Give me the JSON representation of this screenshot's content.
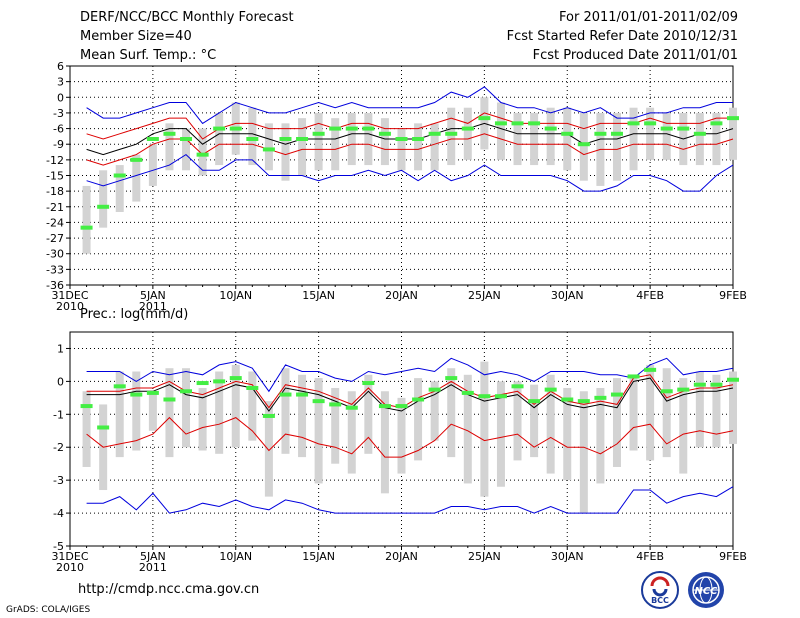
{
  "header": {
    "title": "DERF/NCC/BCC Monthly Forecast",
    "member_size": "Member Size=40",
    "variable1": "Mean Surf. Temp.: °C",
    "period": "For 2011/01/01-2011/02/09",
    "fcst_started": "Fcst Started Refer Date 2010/12/31",
    "fcst_produced": "Fcst Produced Date 2011/01/01"
  },
  "footer": {
    "url": "http://cmdp.ncc.cma.gov.cn",
    "grads": "GrADS: COLA/IGES",
    "logo_left_text": "BCC",
    "logo_right_text": "NCC"
  },
  "colors": {
    "box": "#d3d3d3",
    "obs": "#44ee44",
    "max_min": "#0000dd",
    "spread": "#dd0000",
    "mean": "#000000",
    "grid": "#000000"
  },
  "chart_data": [
    {
      "type": "line",
      "title": "Mean Surf. Temp.: °C",
      "xlabel": "",
      "ylabel": "",
      "ylim": [
        -36,
        6
      ],
      "yticks": [
        6,
        3,
        0,
        -3,
        -6,
        -9,
        -12,
        -15,
        -18,
        -21,
        -24,
        -27,
        -30,
        -33,
        -36
      ],
      "xticks": [
        {
          "day": 0,
          "label": "31DEC",
          "sub": "2010"
        },
        {
          "day": 5,
          "label": "5JAN",
          "sub": "2011"
        },
        {
          "day": 10,
          "label": "10JAN",
          "sub": ""
        },
        {
          "day": 15,
          "label": "15JAN",
          "sub": ""
        },
        {
          "day": 20,
          "label": "20JAN",
          "sub": ""
        },
        {
          "day": 25,
          "label": "25JAN",
          "sub": ""
        },
        {
          "day": 30,
          "label": "30JAN",
          "sub": ""
        },
        {
          "day": 35,
          "label": "4FEB",
          "sub": ""
        },
        {
          "day": 40,
          "label": "9FEB",
          "sub": ""
        }
      ],
      "days": [
        1,
        2,
        3,
        4,
        5,
        6,
        7,
        8,
        9,
        10,
        11,
        12,
        13,
        14,
        15,
        16,
        17,
        18,
        19,
        20,
        21,
        22,
        23,
        24,
        25,
        26,
        27,
        28,
        29,
        30,
        31,
        32,
        33,
        34,
        35,
        36,
        37,
        38,
        39,
        40
      ],
      "box_high": [
        -17,
        -14,
        -13,
        -11,
        -9,
        -5,
        -6,
        -6,
        -3,
        -1,
        -2,
        -5,
        -5,
        -4,
        -3,
        -4,
        -3,
        -3,
        -4,
        -6,
        -5,
        -5,
        -2,
        -2,
        0,
        -1,
        -3,
        -3,
        -2,
        -2,
        -3,
        -3,
        -3,
        -2,
        -2,
        -3,
        -3,
        -3,
        -3,
        -2
      ],
      "box_low": [
        -30,
        -25,
        -22,
        -20,
        -17,
        -14,
        -14,
        -15,
        -13,
        -11,
        -13,
        -14,
        -16,
        -15,
        -14,
        -14,
        -13,
        -13,
        -13,
        -14,
        -14,
        -14,
        -13,
        -12,
        -10,
        -12,
        -13,
        -13,
        -13,
        -14,
        -16,
        -17,
        -16,
        -14,
        -12,
        -12,
        -13,
        -13,
        -13,
        -12
      ],
      "obs": [
        -25,
        -21,
        -15,
        -12,
        -8,
        -7,
        -8,
        -11,
        -6,
        -6,
        -8,
        -10,
        -8,
        -8,
        -7,
        -6,
        -6,
        -6,
        -7,
        -8,
        -8,
        -7,
        -7,
        -6,
        -4,
        -5,
        -5,
        -5,
        -6,
        -7,
        -9,
        -7,
        -7,
        -5,
        -5,
        -6,
        -6,
        -7,
        -5,
        -4
      ],
      "series": [
        {
          "name": "max",
          "values": [
            -2,
            -4,
            -4,
            -3,
            -2,
            -1,
            -1,
            -5,
            -3,
            -1,
            -2,
            -3,
            -3,
            -2,
            -1,
            -2,
            -1,
            -2,
            -2,
            -2,
            -2,
            -1,
            1,
            0,
            2,
            -1,
            -2,
            -2,
            -3,
            -2,
            -3,
            -2,
            -4,
            -4,
            -3,
            -3,
            -2,
            -2,
            -1,
            -1
          ]
        },
        {
          "name": "upper",
          "values": [
            -7,
            -8,
            -7,
            -6,
            -5,
            -4,
            -4,
            -8,
            -6,
            -5,
            -5,
            -6,
            -6,
            -6,
            -5,
            -6,
            -5,
            -5,
            -6,
            -6,
            -6,
            -5,
            -4,
            -5,
            -3,
            -4,
            -5,
            -5,
            -5,
            -5,
            -6,
            -5,
            -5,
            -5,
            -4,
            -5,
            -5,
            -5,
            -4,
            -4
          ]
        },
        {
          "name": "mean",
          "values": [
            -10,
            -11,
            -10,
            -9,
            -7,
            -6,
            -6,
            -9,
            -7,
            -7,
            -7,
            -8,
            -9,
            -8,
            -8,
            -8,
            -7,
            -7,
            -8,
            -8,
            -8,
            -7,
            -6,
            -6,
            -5,
            -6,
            -7,
            -7,
            -7,
            -7,
            -9,
            -8,
            -8,
            -7,
            -7,
            -7,
            -8,
            -7,
            -7,
            -6
          ]
        },
        {
          "name": "lower",
          "values": [
            -12,
            -13,
            -12,
            -11,
            -9,
            -8,
            -8,
            -11,
            -9,
            -9,
            -9,
            -10,
            -11,
            -10,
            -10,
            -10,
            -9,
            -9,
            -10,
            -10,
            -10,
            -9,
            -8,
            -8,
            -7,
            -8,
            -9,
            -9,
            -9,
            -9,
            -11,
            -10,
            -10,
            -9,
            -9,
            -9,
            -10,
            -9,
            -9,
            -8
          ]
        },
        {
          "name": "min",
          "values": [
            -16,
            -17,
            -16,
            -15,
            -14,
            -13,
            -11,
            -14,
            -14,
            -12,
            -12,
            -15,
            -15,
            -15,
            -16,
            -15,
            -15,
            -14,
            -15,
            -14,
            -16,
            -14,
            -16,
            -15,
            -13,
            -15,
            -15,
            -15,
            -15,
            -16,
            -18,
            -18,
            -17,
            -15,
            -15,
            -16,
            -18,
            -18,
            -15,
            -13
          ]
        }
      ]
    },
    {
      "type": "line",
      "title": "Prec.: log(mm/d)",
      "xlabel": "",
      "ylabel": "",
      "ylim": [
        -5,
        1.5
      ],
      "yticks": [
        1,
        0,
        -1,
        -2,
        -3,
        -4,
        -5
      ],
      "xticks": [
        {
          "day": 0,
          "label": "31DEC",
          "sub": "2010"
        },
        {
          "day": 5,
          "label": "5JAN",
          "sub": "2011"
        },
        {
          "day": 10,
          "label": "10JAN",
          "sub": ""
        },
        {
          "day": 15,
          "label": "15JAN",
          "sub": ""
        },
        {
          "day": 20,
          "label": "20JAN",
          "sub": ""
        },
        {
          "day": 25,
          "label": "25JAN",
          "sub": ""
        },
        {
          "day": 30,
          "label": "30JAN",
          "sub": ""
        },
        {
          "day": 35,
          "label": "4FEB",
          "sub": ""
        },
        {
          "day": 40,
          "label": "9FEB",
          "sub": ""
        }
      ],
      "days": [
        1,
        2,
        3,
        4,
        5,
        6,
        7,
        8,
        9,
        10,
        11,
        12,
        13,
        14,
        15,
        16,
        17,
        18,
        19,
        20,
        21,
        22,
        23,
        24,
        25,
        26,
        27,
        28,
        29,
        30,
        31,
        32,
        33,
        34,
        35,
        36,
        37,
        38,
        39,
        40
      ],
      "box_high": [
        -0.3,
        -0.7,
        0.3,
        0.3,
        -0.3,
        0.4,
        0.4,
        -0.2,
        0.3,
        0.5,
        0.3,
        -0.6,
        0.4,
        0.2,
        0.1,
        -0.2,
        -0.3,
        0.2,
        -0.3,
        -0.5,
        0.1,
        0.0,
        0.4,
        0.2,
        0.6,
        0.0,
        0.0,
        -0.1,
        0.2,
        -0.2,
        -0.3,
        -0.2,
        0.1,
        0.1,
        0.5,
        0.4,
        0.1,
        0.3,
        0.2,
        0.3
      ],
      "box_low": [
        -2.6,
        -3.3,
        -2.3,
        -2.1,
        -1.5,
        -2.3,
        -2.0,
        -2.1,
        -2.2,
        -2.0,
        -1.8,
        -3.5,
        -2.2,
        -2.3,
        -3.1,
        -2.5,
        -2.8,
        -2.2,
        -3.4,
        -2.8,
        -2.4,
        -1.8,
        -2.3,
        -3.1,
        -3.5,
        -3.2,
        -2.4,
        -2.3,
        -2.8,
        -3.0,
        -4.0,
        -3.1,
        -2.6,
        -2.1,
        -2.4,
        -2.3,
        -2.8,
        -2.0,
        -2.0,
        -1.9
      ],
      "obs": [
        -0.75,
        -1.4,
        -0.15,
        -0.4,
        -0.35,
        -0.55,
        -0.3,
        -0.05,
        0.0,
        0.1,
        -0.2,
        -1.05,
        -0.4,
        -0.4,
        -0.6,
        -0.7,
        -0.8,
        -0.05,
        -0.75,
        -0.75,
        -0.55,
        -0.25,
        0.1,
        -0.35,
        -0.45,
        -0.45,
        -0.15,
        -0.6,
        -0.25,
        -0.55,
        -0.6,
        -0.5,
        -0.4,
        0.15,
        0.35,
        -0.3,
        -0.25,
        -0.1,
        -0.1,
        0.05
      ],
      "series": [
        {
          "name": "max",
          "values": [
            0.3,
            0.3,
            0.3,
            0.0,
            0.3,
            0.2,
            0.3,
            0.2,
            0.5,
            0.6,
            0.4,
            -0.3,
            0.5,
            0.3,
            0.3,
            0.1,
            0.0,
            0.3,
            0.2,
            0.3,
            0.4,
            0.3,
            0.7,
            0.5,
            0.2,
            0.3,
            0.2,
            0.0,
            0.3,
            0.3,
            0.3,
            0.2,
            0.2,
            0.1,
            0.5,
            0.7,
            0.2,
            0.3,
            0.3,
            0.4
          ]
        },
        {
          "name": "upper",
          "values": [
            -0.3,
            -0.3,
            -0.3,
            -0.2,
            -0.2,
            0.0,
            -0.3,
            -0.4,
            -0.2,
            0.0,
            -0.1,
            -0.8,
            -0.1,
            -0.2,
            -0.3,
            -0.5,
            -0.7,
            -0.2,
            -0.7,
            -0.8,
            -0.5,
            -0.3,
            0.0,
            -0.3,
            -0.5,
            -0.4,
            -0.3,
            -0.7,
            -0.3,
            -0.6,
            -0.7,
            -0.6,
            -0.7,
            0.1,
            0.2,
            -0.5,
            -0.3,
            -0.2,
            -0.2,
            -0.1
          ]
        },
        {
          "name": "mean",
          "values": [
            -0.4,
            -0.4,
            -0.4,
            -0.3,
            -0.3,
            -0.1,
            -0.4,
            -0.5,
            -0.3,
            -0.1,
            -0.2,
            -0.9,
            -0.2,
            -0.3,
            -0.4,
            -0.6,
            -0.8,
            -0.3,
            -0.8,
            -0.9,
            -0.6,
            -0.4,
            -0.1,
            -0.4,
            -0.6,
            -0.5,
            -0.4,
            -0.8,
            -0.4,
            -0.7,
            -0.8,
            -0.7,
            -0.8,
            0.0,
            0.1,
            -0.6,
            -0.4,
            -0.3,
            -0.3,
            -0.2
          ]
        },
        {
          "name": "lower",
          "values": [
            -1.6,
            -2.0,
            -1.9,
            -1.8,
            -1.6,
            -1.1,
            -1.6,
            -1.4,
            -1.3,
            -1.1,
            -1.5,
            -2.1,
            -1.6,
            -1.7,
            -1.9,
            -2.0,
            -2.2,
            -1.7,
            -2.3,
            -2.3,
            -2.1,
            -1.8,
            -1.3,
            -1.5,
            -1.8,
            -1.7,
            -1.6,
            -2.0,
            -1.7,
            -2.0,
            -2.0,
            -2.2,
            -1.9,
            -1.4,
            -1.3,
            -1.9,
            -1.6,
            -1.5,
            -1.6,
            -1.5
          ]
        },
        {
          "name": "min",
          "values": [
            -3.7,
            -3.7,
            -3.5,
            -3.9,
            -3.4,
            -4.0,
            -3.9,
            -3.7,
            -3.8,
            -3.6,
            -3.8,
            -3.9,
            -3.6,
            -3.7,
            -3.9,
            -4.0,
            -4.0,
            -4.0,
            -4.0,
            -4.0,
            -4.0,
            -4.0,
            -3.8,
            -3.8,
            -3.9,
            -3.8,
            -3.8,
            -4.0,
            -3.8,
            -4.0,
            -4.0,
            -4.0,
            -4.0,
            -3.3,
            -3.3,
            -3.7,
            -3.5,
            -3.4,
            -3.5,
            -3.2
          ]
        }
      ]
    }
  ]
}
